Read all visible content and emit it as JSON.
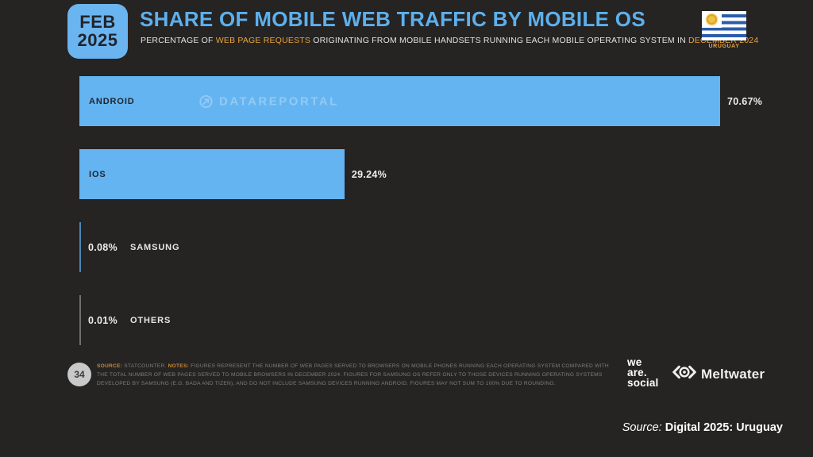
{
  "header": {
    "date_badge": {
      "month": "FEB",
      "year": "2025"
    },
    "title": "SHARE OF MOBILE WEB TRAFFIC BY MOBILE OS",
    "subtitle": {
      "prefix": "PERCENTAGE OF ",
      "highlight1": "WEB PAGE REQUESTS",
      "middle": " ORIGINATING FROM MOBILE HANDSETS RUNNING EACH MOBILE OPERATING SYSTEM IN ",
      "highlight2": "DECEMBER 2024"
    },
    "country_label": "URUGUAY"
  },
  "chart_data": {
    "type": "bar",
    "orientation": "horizontal",
    "title": "SHARE OF MOBILE WEB TRAFFIC BY MOBILE OS",
    "categories": [
      "ANDROID",
      "IOS",
      "SAMSUNG",
      "OTHERS"
    ],
    "values": [
      70.67,
      29.24,
      0.08,
      0.01
    ],
    "value_labels": [
      "70.67%",
      "29.24%",
      "0.08%",
      "0.01%"
    ],
    "bar_colors": [
      "#64b4f1",
      "#64b4f1",
      "#4f86b5",
      "#6f6f6f"
    ],
    "xlim": [
      0,
      75
    ],
    "grid": false,
    "legend": false
  },
  "watermark": {
    "text": "DATAREPORTAL"
  },
  "footer": {
    "page_number": "34",
    "source_label": "SOURCE:",
    "source_text": " STATCOUNTER. ",
    "notes_label": "NOTES:",
    "notes_text": " FIGURES REPRESENT THE NUMBER OF WEB PAGES SERVED TO BROWSERS ON MOBILE PHONES RUNNING EACH OPERATING SYSTEM COMPARED WITH THE TOTAL NUMBER OF WEB PAGES SERVED TO MOBILE BROWSERS IN DECEMBER 2024. FIGURES FOR SAMSUNG OS REFER ONLY TO THOSE DEVICES RUNNING OPERATING SYSTEMS DEVELOPED BY SAMSUNG (E.G. BADA AND TIZEN), AND DO NOT INCLUDE SAMSUNG DEVICES RUNNING ANDROID. FIGURES MAY NOT SUM TO 100% DUE TO ROUNDING.",
    "we_are_social": {
      "line1": "we",
      "line2": "are.",
      "line3": "social"
    },
    "meltwater_label": "Meltwater"
  },
  "bottom_bar": {
    "source_prefix": "Source: ",
    "source_title": "Digital 2025: Uruguay"
  },
  "colors": {
    "background": "#262323",
    "accent_blue": "#64b4f1",
    "title_blue": "#5cb0ec",
    "accent_orange": "#e8a33c",
    "footnote_gray": "#7d7d7d"
  }
}
